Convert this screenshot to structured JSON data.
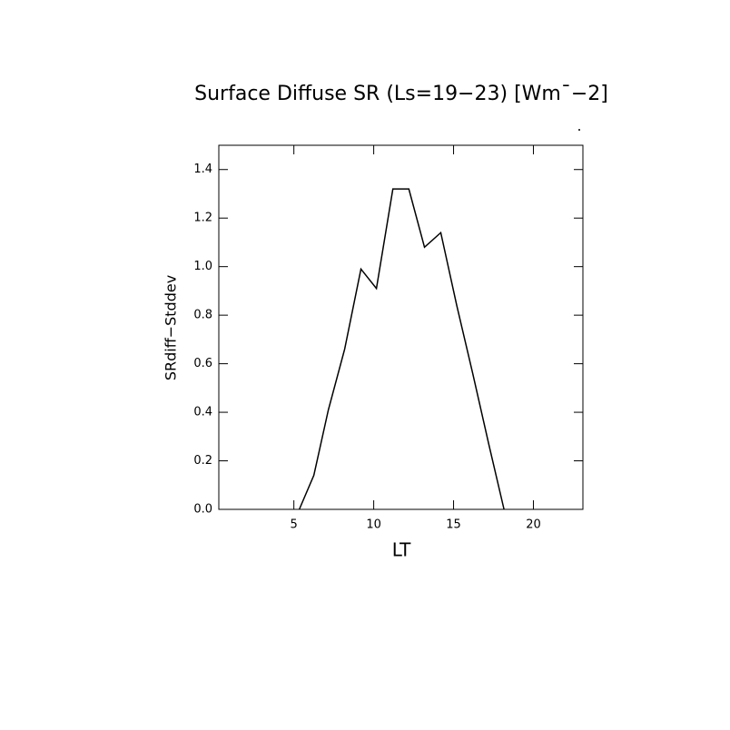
{
  "chart_data": {
    "type": "line",
    "title": "Surface Diffuse SR (Ls=19−23) [Wm¯−2]",
    "x_label": "LT",
    "y_label": "SRdiff−Stddev",
    "series": [
      {
        "name": null,
        "color": "#000000",
        "x": [
          5.34,
          6.25,
          7.16,
          8.18,
          9.2,
          10.17,
          11.2,
          12.2,
          13.18,
          14.2,
          15.2,
          16.2,
          17.2,
          18.16
        ],
        "values": [
          0,
          0.14,
          0.41,
          0.66,
          0.99,
          0.91,
          1.32,
          1.32,
          1.08,
          1.14,
          0.84,
          0.56,
          0.27,
          0
        ]
      }
    ],
    "xlim": [
      0.3,
      23.1
    ],
    "xticks": [
      5,
      10,
      15,
      20
    ],
    "ylim": [
      0,
      1.5
    ],
    "yticks": [
      {
        "value": 0,
        "label": "0.0"
      },
      0.2,
      0.4,
      0.6,
      0.8,
      {
        "value": 1,
        "label": "1.0"
      },
      1.2,
      1.4
    ]
  }
}
